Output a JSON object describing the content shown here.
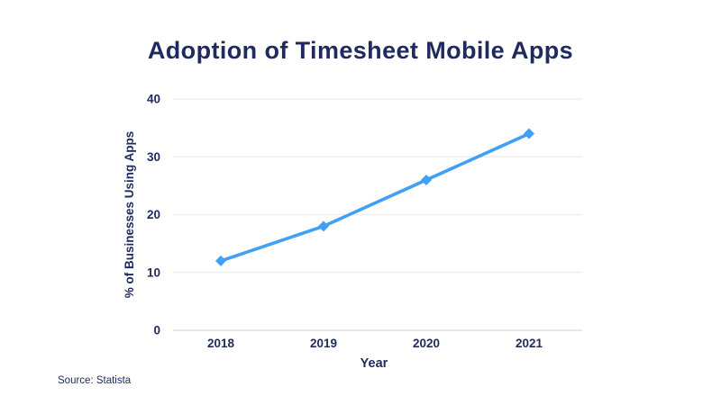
{
  "chart_data": {
    "type": "line",
    "title": "Adoption of Timesheet Mobile Apps",
    "x": [
      "2018",
      "2019",
      "2020",
      "2021"
    ],
    "series": [
      {
        "name": "% of Businesses Using Apps",
        "values": [
          12,
          18,
          26,
          34
        ]
      }
    ],
    "xlabel": "Year",
    "ylabel": "% of Businesses Using Apps",
    "ylim": [
      0,
      40
    ],
    "yticks": [
      0,
      10,
      20,
      30,
      40
    ],
    "grid": true,
    "legend": false,
    "marker": "diamond",
    "colors": {
      "line": "#41a0f5",
      "text": "#1f2a5e",
      "grid": "#ececf1",
      "axis": "#d3d8df"
    }
  },
  "source": "Source: Statista"
}
